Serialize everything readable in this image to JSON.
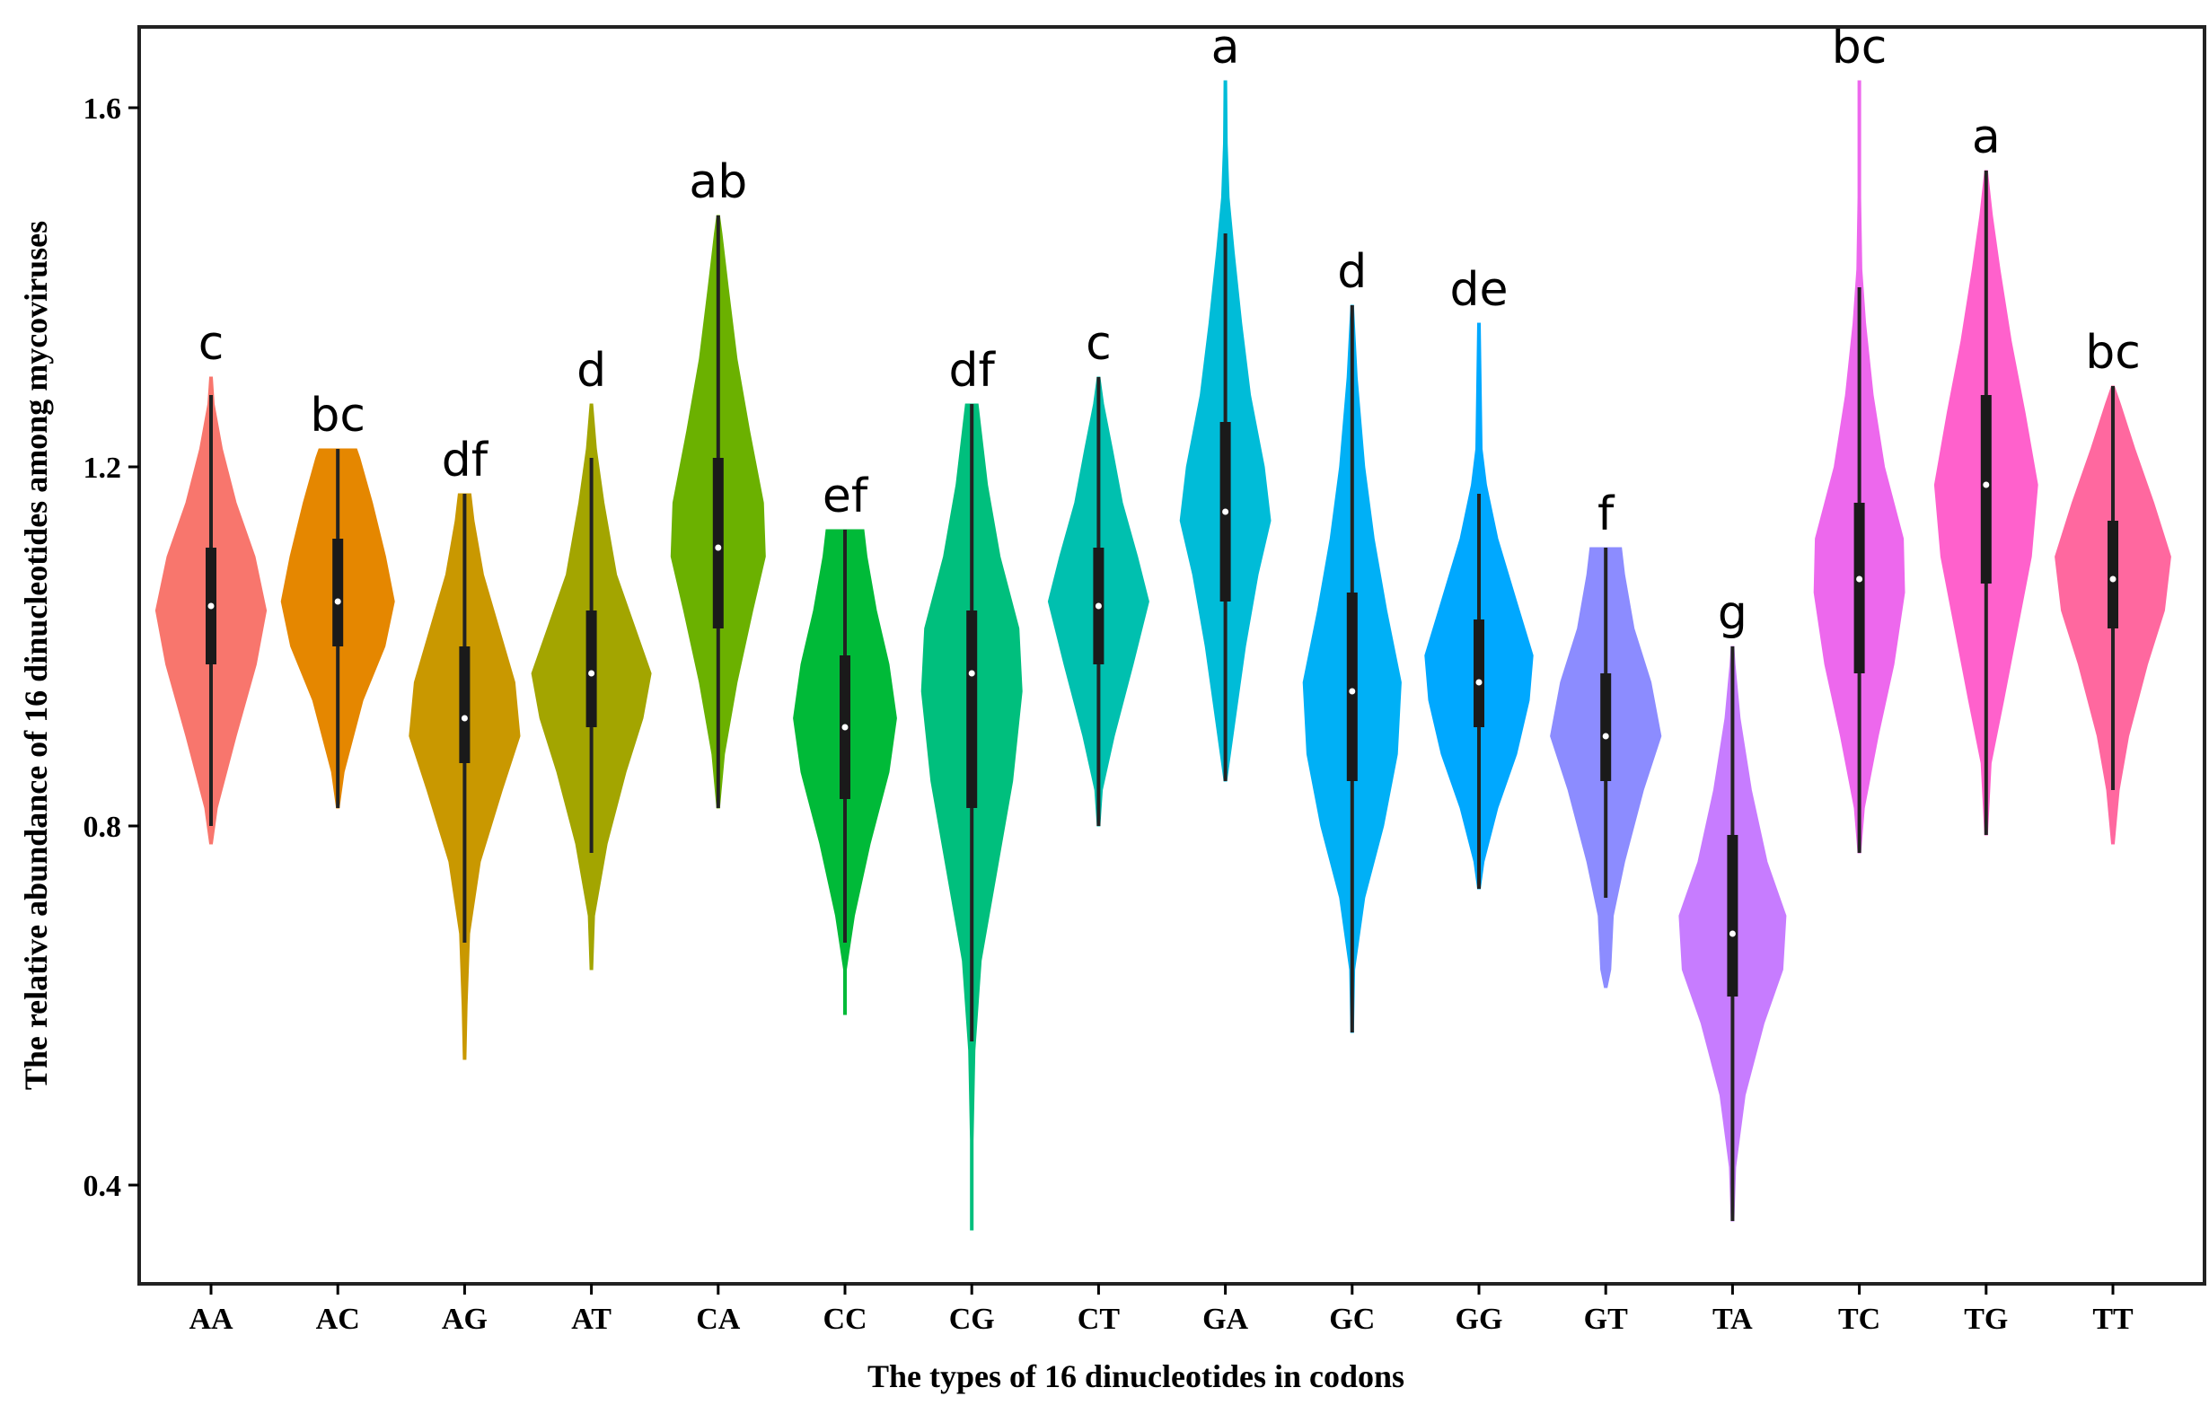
{
  "chart_data": {
    "type": "violin",
    "xlabel": "The types of 16 dinucleotides in codons",
    "ylabel": "The relative abundance of 16 dinucleotides among mycoviruses",
    "ylim": [
      0.29,
      1.69
    ],
    "yticks": [
      0.4,
      0.8,
      1.2,
      1.6
    ],
    "ytick_labels": [
      "0.4",
      "0.8",
      "1.2",
      "1.6"
    ],
    "series": [
      {
        "name": "AA",
        "color": "#F8766D",
        "letter": "c",
        "min": 0.78,
        "max": 1.3,
        "q1": 0.98,
        "median": 1.045,
        "q3": 1.11,
        "box_lo": 0.8,
        "box_hi": 1.28,
        "profile": [
          [
            0.78,
            0.0
          ],
          [
            0.82,
            0.1
          ],
          [
            0.9,
            0.4
          ],
          [
            0.98,
            0.72
          ],
          [
            1.04,
            0.88
          ],
          [
            1.1,
            0.7
          ],
          [
            1.16,
            0.4
          ],
          [
            1.22,
            0.18
          ],
          [
            1.27,
            0.05
          ],
          [
            1.3,
            0.0
          ]
        ]
      },
      {
        "name": "AC",
        "color": "#E58700",
        "letter": "bc",
        "min": 0.82,
        "max": 1.22,
        "q1": 1.0,
        "median": 1.05,
        "q3": 1.12,
        "box_lo": 0.82,
        "box_hi": 1.22,
        "profile": [
          [
            0.82,
            0.0
          ],
          [
            0.86,
            0.1
          ],
          [
            0.94,
            0.4
          ],
          [
            1.0,
            0.75
          ],
          [
            1.05,
            0.9
          ],
          [
            1.1,
            0.76
          ],
          [
            1.16,
            0.55
          ],
          [
            1.21,
            0.35
          ],
          [
            1.22,
            0.3
          ]
        ]
      },
      {
        "name": "AG",
        "color": "#C99800",
        "letter": "df",
        "min": 0.54,
        "max": 1.17,
        "q1": 0.87,
        "median": 0.92,
        "q3": 1.0,
        "box_lo": 0.67,
        "box_hi": 1.17,
        "profile": [
          [
            0.54,
            0.0
          ],
          [
            0.6,
            0.04
          ],
          [
            0.68,
            0.08
          ],
          [
            0.76,
            0.25
          ],
          [
            0.84,
            0.6
          ],
          [
            0.9,
            0.88
          ],
          [
            0.96,
            0.8
          ],
          [
            1.02,
            0.55
          ],
          [
            1.08,
            0.3
          ],
          [
            1.14,
            0.15
          ],
          [
            1.17,
            0.1
          ]
        ]
      },
      {
        "name": "AT",
        "color": "#A3A500",
        "letter": "d",
        "min": 0.64,
        "max": 1.27,
        "q1": 0.91,
        "median": 0.97,
        "q3": 1.04,
        "box_lo": 0.77,
        "box_hi": 1.21,
        "profile": [
          [
            0.64,
            0.0
          ],
          [
            0.7,
            0.05
          ],
          [
            0.78,
            0.25
          ],
          [
            0.86,
            0.55
          ],
          [
            0.92,
            0.82
          ],
          [
            0.97,
            0.95
          ],
          [
            1.02,
            0.7
          ],
          [
            1.08,
            0.4
          ],
          [
            1.16,
            0.2
          ],
          [
            1.22,
            0.08
          ],
          [
            1.27,
            0.02
          ]
        ]
      },
      {
        "name": "CA",
        "color": "#6BB100",
        "letter": "ab",
        "min": 0.82,
        "max": 1.48,
        "q1": 1.02,
        "median": 1.11,
        "q3": 1.21,
        "box_lo": 0.82,
        "box_hi": 1.48,
        "profile": [
          [
            0.82,
            0.0
          ],
          [
            0.88,
            0.1
          ],
          [
            0.96,
            0.3
          ],
          [
            1.04,
            0.55
          ],
          [
            1.1,
            0.75
          ],
          [
            1.16,
            0.72
          ],
          [
            1.24,
            0.5
          ],
          [
            1.32,
            0.3
          ],
          [
            1.4,
            0.16
          ],
          [
            1.46,
            0.06
          ],
          [
            1.48,
            0.0
          ]
        ]
      },
      {
        "name": "CC",
        "color": "#00BA38",
        "letter": "ef",
        "min": 0.59,
        "max": 1.13,
        "q1": 0.83,
        "median": 0.91,
        "q3": 0.99,
        "box_lo": 0.67,
        "box_hi": 1.13,
        "profile": [
          [
            0.59,
            0.0
          ],
          [
            0.64,
            0.02
          ],
          [
            0.7,
            0.15
          ],
          [
            0.78,
            0.4
          ],
          [
            0.86,
            0.7
          ],
          [
            0.92,
            0.82
          ],
          [
            0.98,
            0.7
          ],
          [
            1.04,
            0.5
          ],
          [
            1.1,
            0.35
          ],
          [
            1.13,
            0.3
          ]
        ]
      },
      {
        "name": "CG",
        "color": "#00BF7D",
        "letter": "df",
        "min": 0.35,
        "max": 1.27,
        "q1": 0.82,
        "median": 0.97,
        "q3": 1.04,
        "box_lo": 0.56,
        "box_hi": 1.27,
        "profile": [
          [
            0.35,
            0.0
          ],
          [
            0.45,
            0.02
          ],
          [
            0.55,
            0.05
          ],
          [
            0.65,
            0.15
          ],
          [
            0.75,
            0.4
          ],
          [
            0.85,
            0.65
          ],
          [
            0.95,
            0.8
          ],
          [
            1.02,
            0.75
          ],
          [
            1.1,
            0.45
          ],
          [
            1.18,
            0.25
          ],
          [
            1.24,
            0.15
          ],
          [
            1.27,
            0.1
          ]
        ]
      },
      {
        "name": "CT",
        "color": "#00C0AF",
        "letter": "c",
        "min": 0.8,
        "max": 1.3,
        "q1": 0.98,
        "median": 1.045,
        "q3": 1.11,
        "box_lo": 0.8,
        "box_hi": 1.3,
        "profile": [
          [
            0.8,
            0.0
          ],
          [
            0.84,
            0.06
          ],
          [
            0.9,
            0.25
          ],
          [
            0.98,
            0.55
          ],
          [
            1.05,
            0.8
          ],
          [
            1.1,
            0.62
          ],
          [
            1.16,
            0.38
          ],
          [
            1.22,
            0.22
          ],
          [
            1.27,
            0.08
          ],
          [
            1.3,
            0.0
          ]
        ]
      },
      {
        "name": "GA",
        "color": "#00BCD8",
        "letter": "a",
        "min": 0.85,
        "max": 1.63,
        "q1": 1.05,
        "median": 1.15,
        "q3": 1.25,
        "box_lo": 0.85,
        "box_hi": 1.46,
        "profile": [
          [
            0.85,
            0.0
          ],
          [
            0.92,
            0.16
          ],
          [
            1.0,
            0.32
          ],
          [
            1.08,
            0.52
          ],
          [
            1.14,
            0.72
          ],
          [
            1.2,
            0.62
          ],
          [
            1.28,
            0.4
          ],
          [
            1.36,
            0.26
          ],
          [
            1.44,
            0.14
          ],
          [
            1.5,
            0.06
          ],
          [
            1.56,
            0.03
          ],
          [
            1.63,
            0.0
          ]
        ]
      },
      {
        "name": "GC",
        "color": "#00B0F6",
        "letter": "d",
        "min": 0.57,
        "max": 1.38,
        "q1": 0.85,
        "median": 0.95,
        "q3": 1.06,
        "box_lo": 0.57,
        "box_hi": 1.38,
        "profile": [
          [
            0.57,
            0.0
          ],
          [
            0.64,
            0.04
          ],
          [
            0.72,
            0.2
          ],
          [
            0.8,
            0.5
          ],
          [
            0.88,
            0.72
          ],
          [
            0.96,
            0.78
          ],
          [
            1.04,
            0.55
          ],
          [
            1.12,
            0.35
          ],
          [
            1.2,
            0.2
          ],
          [
            1.3,
            0.08
          ],
          [
            1.38,
            0.02
          ]
        ]
      },
      {
        "name": "GG",
        "color": "#00A8FF",
        "letter": "de",
        "min": 0.73,
        "max": 1.36,
        "q1": 0.91,
        "median": 0.96,
        "q3": 1.03,
        "box_lo": 0.73,
        "box_hi": 1.17,
        "profile": [
          [
            0.73,
            0.0
          ],
          [
            0.76,
            0.08
          ],
          [
            0.82,
            0.3
          ],
          [
            0.88,
            0.6
          ],
          [
            0.94,
            0.8
          ],
          [
            0.99,
            0.86
          ],
          [
            1.05,
            0.6
          ],
          [
            1.12,
            0.3
          ],
          [
            1.18,
            0.12
          ],
          [
            1.22,
            0.05
          ],
          [
            1.36,
            0.0
          ]
        ]
      },
      {
        "name": "GT",
        "color": "#8C8CFF",
        "letter": "f",
        "min": 0.62,
        "max": 1.11,
        "q1": 0.85,
        "median": 0.9,
        "q3": 0.97,
        "box_lo": 0.72,
        "box_hi": 1.11,
        "profile": [
          [
            0.62,
            0.0
          ],
          [
            0.64,
            0.08
          ],
          [
            0.7,
            0.12
          ],
          [
            0.76,
            0.3
          ],
          [
            0.84,
            0.6
          ],
          [
            0.9,
            0.88
          ],
          [
            0.96,
            0.72
          ],
          [
            1.02,
            0.45
          ],
          [
            1.08,
            0.3
          ],
          [
            1.11,
            0.25
          ]
        ]
      },
      {
        "name": "TA",
        "color": "#C77CFF",
        "letter": "g",
        "min": 0.36,
        "max": 1.0,
        "q1": 0.61,
        "median": 0.68,
        "q3": 0.79,
        "box_lo": 0.36,
        "box_hi": 1.0,
        "profile": [
          [
            0.36,
            0.0
          ],
          [
            0.42,
            0.05
          ],
          [
            0.5,
            0.2
          ],
          [
            0.58,
            0.5
          ],
          [
            0.64,
            0.8
          ],
          [
            0.7,
            0.85
          ],
          [
            0.76,
            0.55
          ],
          [
            0.84,
            0.3
          ],
          [
            0.92,
            0.12
          ],
          [
            0.98,
            0.04
          ],
          [
            1.0,
            0.0
          ]
        ]
      },
      {
        "name": "TC",
        "color": "#ED68ED",
        "letter": "bc",
        "min": 0.77,
        "max": 1.63,
        "q1": 0.97,
        "median": 1.075,
        "q3": 1.16,
        "box_lo": 0.77,
        "box_hi": 1.4,
        "profile": [
          [
            0.77,
            0.0
          ],
          [
            0.82,
            0.08
          ],
          [
            0.9,
            0.3
          ],
          [
            0.98,
            0.55
          ],
          [
            1.06,
            0.72
          ],
          [
            1.12,
            0.7
          ],
          [
            1.2,
            0.4
          ],
          [
            1.28,
            0.22
          ],
          [
            1.36,
            0.1
          ],
          [
            1.42,
            0.04
          ],
          [
            1.5,
            0.02
          ],
          [
            1.63,
            0.0
          ]
        ]
      },
      {
        "name": "TG",
        "color": "#FF61CC",
        "letter": "a",
        "min": 0.79,
        "max": 1.53,
        "q1": 1.07,
        "median": 1.18,
        "q3": 1.28,
        "box_lo": 0.79,
        "box_hi": 1.53,
        "profile": [
          [
            0.79,
            0.0
          ],
          [
            0.87,
            0.08
          ],
          [
            0.94,
            0.28
          ],
          [
            1.02,
            0.5
          ],
          [
            1.1,
            0.72
          ],
          [
            1.18,
            0.82
          ],
          [
            1.26,
            0.62
          ],
          [
            1.34,
            0.4
          ],
          [
            1.42,
            0.22
          ],
          [
            1.48,
            0.1
          ],
          [
            1.53,
            0.02
          ]
        ]
      },
      {
        "name": "TT",
        "color": "#FF689F",
        "letter": "bc",
        "min": 0.78,
        "max": 1.29,
        "q1": 1.02,
        "median": 1.075,
        "q3": 1.14,
        "box_lo": 0.84,
        "box_hi": 1.29,
        "profile": [
          [
            0.78,
            0.0
          ],
          [
            0.84,
            0.1
          ],
          [
            0.9,
            0.25
          ],
          [
            0.98,
            0.55
          ],
          [
            1.04,
            0.82
          ],
          [
            1.1,
            0.92
          ],
          [
            1.16,
            0.65
          ],
          [
            1.22,
            0.35
          ],
          [
            1.27,
            0.12
          ],
          [
            1.29,
            0.0
          ]
        ]
      }
    ]
  }
}
